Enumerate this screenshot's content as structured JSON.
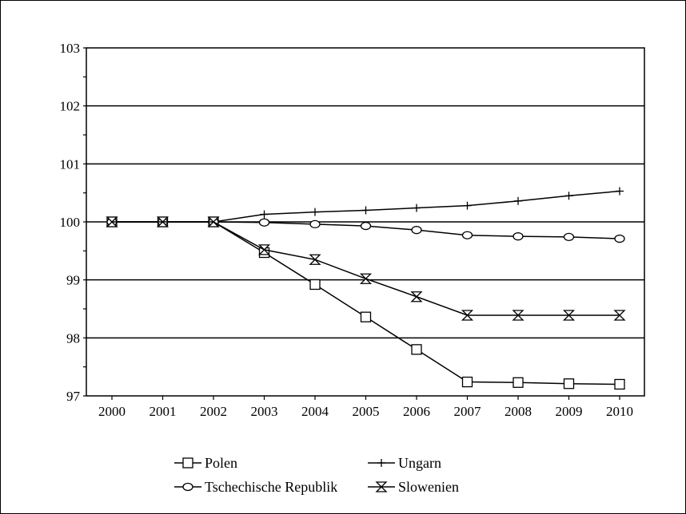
{
  "chart_data": {
    "type": "line",
    "title": "",
    "xlabel": "",
    "ylabel": "",
    "x": [
      "2000",
      "2001",
      "2002",
      "2003",
      "2004",
      "2005",
      "2006",
      "2007",
      "2008",
      "2009",
      "2010"
    ],
    "ylim": [
      97,
      103
    ],
    "yticks": [
      "97",
      "98",
      "99",
      "100",
      "101",
      "102",
      "103"
    ],
    "grid": "horizontal",
    "legend_position": "bottom",
    "series": [
      {
        "name": "Polen",
        "marker": "square",
        "values": [
          100,
          100,
          100,
          99.47,
          98.92,
          98.36,
          97.8,
          97.24,
          97.23,
          97.21,
          97.2
        ]
      },
      {
        "name": "Ungarn",
        "marker": "plus",
        "values": [
          100,
          100,
          100,
          100.13,
          100.17,
          100.2,
          100.24,
          100.28,
          100.36,
          100.45,
          100.53
        ]
      },
      {
        "name": "Tschechische Republik",
        "marker": "circle",
        "values": [
          100,
          100,
          100,
          99.99,
          99.96,
          99.93,
          99.86,
          99.77,
          99.75,
          99.74,
          99.71
        ]
      },
      {
        "name": "Slowenien",
        "marker": "hourglass",
        "values": [
          100,
          100,
          100,
          99.52,
          99.35,
          99.02,
          98.71,
          98.39,
          98.39,
          98.39,
          98.39
        ]
      }
    ]
  }
}
